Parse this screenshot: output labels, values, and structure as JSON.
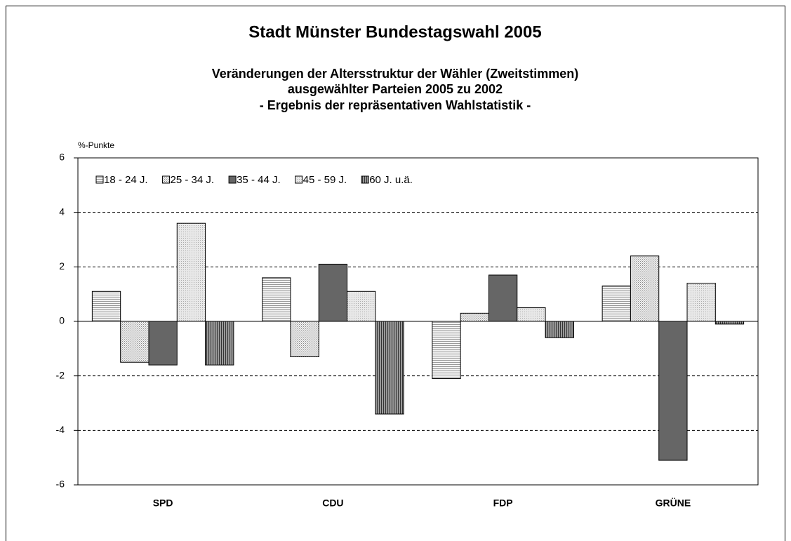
{
  "chart_data": {
    "type": "bar",
    "title": "Stadt Münster Bundestagswahl 2005",
    "subtitle": [
      "Veränderungen der Altersstruktur der Wähler (Zweitstimmen)",
      "ausgewählter Parteien 2005 zu 2002",
      "- Ergebnis der repräsentativen Wahlstatistik -"
    ],
    "y_label": "%-Punkte",
    "categories": [
      "SPD",
      "CDU",
      "FDP",
      "GRÜNE"
    ],
    "series": [
      {
        "name": "18 - 24 J.",
        "color": "#e6e6e6",
        "pattern": "horizontal",
        "values": [
          1.1,
          1.6,
          -2.1,
          1.3
        ]
      },
      {
        "name": "25 - 34 J.",
        "color": "#d0d0d0",
        "pattern": "dots",
        "values": [
          -1.5,
          -1.3,
          0.3,
          2.4
        ]
      },
      {
        "name": "35 - 44 J.",
        "color": "#666666",
        "pattern": "solid",
        "values": [
          -1.6,
          2.1,
          1.7,
          -5.1
        ]
      },
      {
        "name": "45 - 59 J.",
        "color": "#dcdcdc",
        "pattern": "grid",
        "values": [
          3.6,
          1.1,
          0.5,
          1.4
        ]
      },
      {
        "name": "60 J. u.ä.",
        "color": "#777777",
        "pattern": "vertical",
        "values": [
          -1.6,
          -3.4,
          -0.6,
          -0.1
        ]
      }
    ],
    "ylim": [
      -6,
      6
    ],
    "yticks": [
      -6,
      -4,
      -2,
      0,
      2,
      4,
      6
    ],
    "grid": true,
    "legend": "top-left"
  }
}
